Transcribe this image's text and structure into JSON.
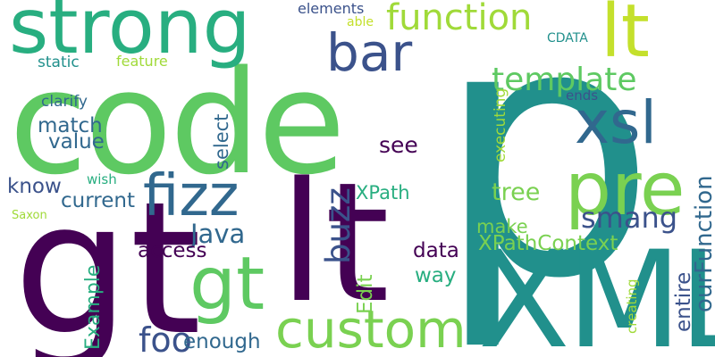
{
  "colors": {
    "dark_purple": "#440154",
    "indigo": "#3b528b",
    "blue": "#31688e",
    "teal": "#21908c",
    "green_teal": "#28ae80",
    "green": "#5ec962",
    "light_green": "#7ad151",
    "lime": "#a0da39",
    "yellow_green": "#c4e02c"
  },
  "words": [
    {
      "text": "p",
      "color": "#21908c",
      "orientation": "horizontal"
    },
    {
      "text": "code",
      "color": "#5ec962",
      "orientation": "horizontal"
    },
    {
      "text": "gt",
      "color": "#440154",
      "orientation": "horizontal"
    },
    {
      "text": "lt",
      "color": "#440154",
      "orientation": "horizontal"
    },
    {
      "text": "XML",
      "color": "#21908c",
      "orientation": "horizontal"
    },
    {
      "text": "strong",
      "color": "#28ae80",
      "orientation": "horizontal"
    },
    {
      "text": "pre",
      "color": "#7ad151",
      "orientation": "horizontal"
    },
    {
      "text": "lt",
      "color": "#c4e02c",
      "orientation": "horizontal"
    },
    {
      "text": "gt",
      "color": "#5ec962",
      "orientation": "horizontal"
    },
    {
      "text": "custom",
      "color": "#7ad151",
      "orientation": "horizontal"
    },
    {
      "text": "fizz",
      "color": "#31688e",
      "orientation": "horizontal"
    },
    {
      "text": "xsl",
      "color": "#31688e",
      "orientation": "horizontal"
    },
    {
      "text": "bar",
      "color": "#3b528b",
      "orientation": "horizontal"
    },
    {
      "text": "function",
      "color": "#a0da39",
      "orientation": "horizontal"
    },
    {
      "text": "buzz",
      "color": "#3b528b",
      "orientation": "vertical"
    },
    {
      "text": "template",
      "color": "#5ec962",
      "orientation": "horizontal"
    },
    {
      "text": "smang",
      "color": "#3b528b",
      "orientation": "horizontal"
    },
    {
      "text": "foo",
      "color": "#3b528b",
      "orientation": "horizontal"
    },
    {
      "text": "Java",
      "color": "#31688e",
      "orientation": "horizontal"
    },
    {
      "text": "tree",
      "color": "#7ad151",
      "orientation": "horizontal"
    },
    {
      "text": "ourFunction",
      "color": "#31688e",
      "orientation": "vertical"
    },
    {
      "text": "XPathContext",
      "color": "#7ad151",
      "orientation": "horizontal"
    },
    {
      "text": "entire",
      "color": "#3b528b",
      "orientation": "vertical"
    },
    {
      "text": "see",
      "color": "#440154",
      "orientation": "horizontal"
    },
    {
      "text": "match",
      "color": "#31688e",
      "orientation": "horizontal"
    },
    {
      "text": "value",
      "color": "#31688e",
      "orientation": "horizontal"
    },
    {
      "text": "current",
      "color": "#31688e",
      "orientation": "horizontal"
    },
    {
      "text": "know",
      "color": "#3b528b",
      "orientation": "horizontal"
    },
    {
      "text": "data",
      "color": "#440154",
      "orientation": "horizontal"
    },
    {
      "text": "way",
      "color": "#28ae80",
      "orientation": "horizontal"
    },
    {
      "text": "Edit",
      "color": "#7ad151",
      "orientation": "vertical"
    },
    {
      "text": "Example",
      "color": "#28ae80",
      "orientation": "vertical"
    },
    {
      "text": "access",
      "color": "#440154",
      "orientation": "horizontal"
    },
    {
      "text": "enough",
      "color": "#31688e",
      "orientation": "horizontal"
    },
    {
      "text": "select",
      "color": "#31688e",
      "orientation": "vertical"
    },
    {
      "text": "XPath",
      "color": "#28ae80",
      "orientation": "horizontal"
    },
    {
      "text": "make",
      "color": "#7ad151",
      "orientation": "horizontal"
    },
    {
      "text": "clarify",
      "color": "#31688e",
      "orientation": "horizontal"
    },
    {
      "text": "elements",
      "color": "#3b528b",
      "orientation": "horizontal"
    },
    {
      "text": "static",
      "color": "#21908c",
      "orientation": "horizontal"
    },
    {
      "text": "feature",
      "color": "#a0da39",
      "orientation": "horizontal"
    },
    {
      "text": "wish",
      "color": "#28ae80",
      "orientation": "horizontal"
    },
    {
      "text": "Saxon",
      "color": "#a0da39",
      "orientation": "horizontal"
    },
    {
      "text": "ends",
      "color": "#3b528b",
      "orientation": "horizontal"
    },
    {
      "text": "executing",
      "color": "#a0da39",
      "orientation": "vertical"
    },
    {
      "text": "creating",
      "color": "#a0da39",
      "orientation": "vertical"
    },
    {
      "text": "able",
      "color": "#c4e02c",
      "orientation": "horizontal"
    },
    {
      "text": "CDATA",
      "color": "#21908c",
      "orientation": "horizontal"
    }
  ]
}
